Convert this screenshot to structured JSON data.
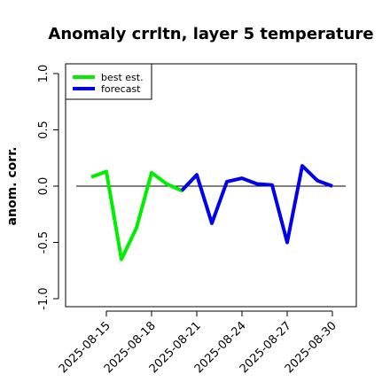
{
  "chart_data": {
    "type": "line",
    "title": "Anomaly crrltn, layer 5 temperature",
    "xlabel": "",
    "ylabel": "anom. corr.",
    "ylim": [
      -1.0,
      1.0
    ],
    "yticks": [
      "-1.0",
      "-0.5",
      "0.0",
      "0.5",
      "1.0"
    ],
    "xticks": [
      "2025-08-15",
      "2025-08-18",
      "2025-08-21",
      "2025-08-24",
      "2025-08-27",
      "2025-08-30"
    ],
    "highlight_tick": "2025-08-21",
    "highlight_color": "#228B22",
    "reference_line": 0.0,
    "legend_position": "top-left",
    "series": [
      {
        "name": "best est.",
        "color": "#00ee00",
        "x": [
          "2025-08-14",
          "2025-08-15",
          "2025-08-16",
          "2025-08-17",
          "2025-08-18",
          "2025-08-19",
          "2025-08-20",
          "2025-08-21"
        ],
        "values": [
          0.08,
          0.13,
          -0.65,
          -0.37,
          0.12,
          0.02,
          -0.04,
          0.1
        ]
      },
      {
        "name": "forecast",
        "color": "#0000ee",
        "x": [
          "2025-08-20",
          "2025-08-21",
          "2025-08-22",
          "2025-08-23",
          "2025-08-24",
          "2025-08-25",
          "2025-08-26",
          "2025-08-27",
          "2025-08-28",
          "2025-08-29",
          "2025-08-30"
        ],
        "values": [
          -0.04,
          0.1,
          -0.33,
          0.04,
          0.07,
          0.02,
          0.01,
          -0.5,
          0.18,
          0.05,
          0.0
        ]
      }
    ]
  }
}
